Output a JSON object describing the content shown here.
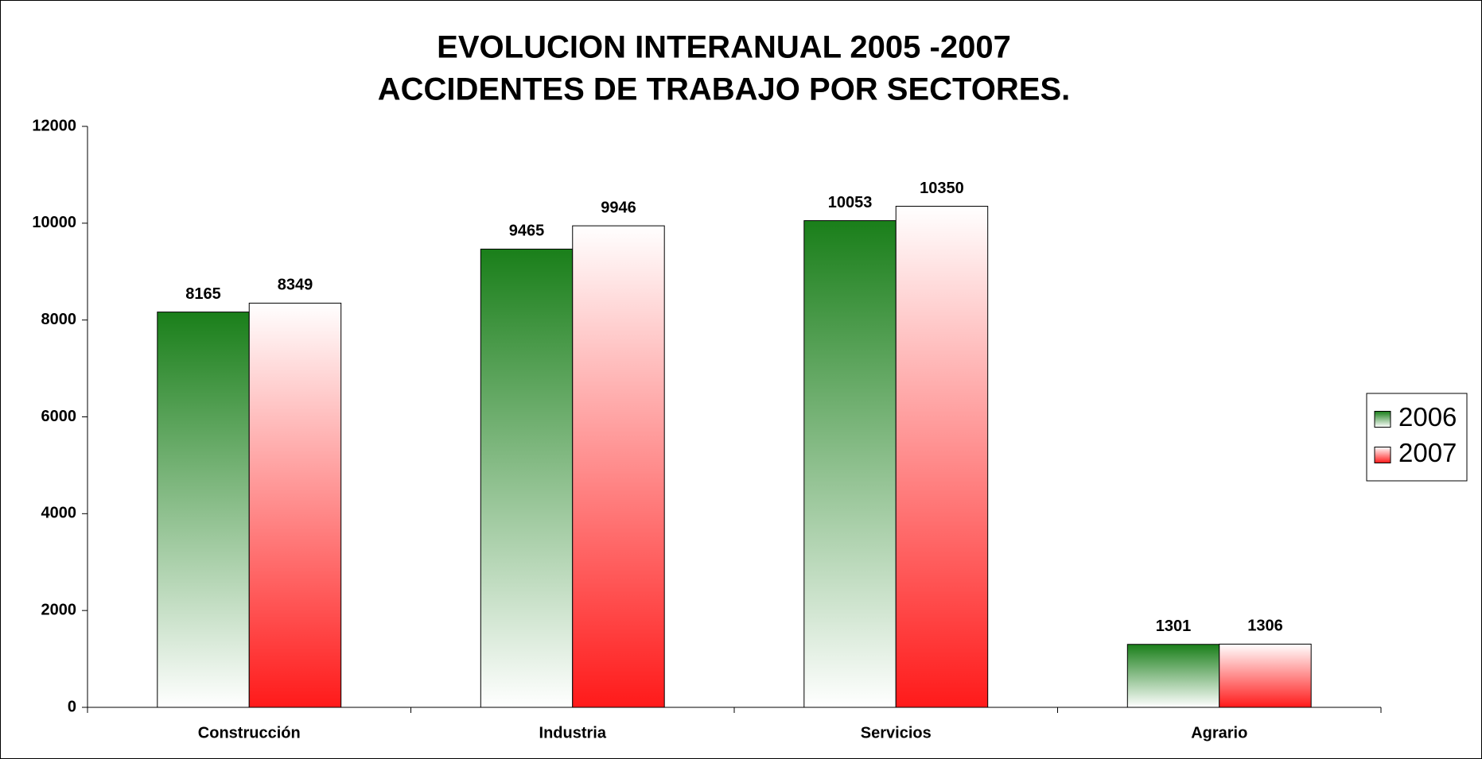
{
  "chart_data": {
    "type": "bar",
    "title": [
      "EVOLUCION INTERANUAL 2005 -2007",
      "ACCIDENTES DE TRABAJO POR SECTORES."
    ],
    "categories": [
      "Construcción",
      "Industria",
      "Servicios",
      "Agrario"
    ],
    "series": [
      {
        "name": "2006",
        "color": "#1a7f1a",
        "values": [
          8165,
          9465,
          10053,
          1301
        ]
      },
      {
        "name": "2007",
        "color": "#ff1a1a",
        "values": [
          8349,
          9946,
          10350,
          1306
        ]
      }
    ],
    "ylim": [
      0,
      12000
    ],
    "yticks": [
      0,
      2000,
      4000,
      6000,
      8000,
      10000,
      12000
    ],
    "legend": "right"
  }
}
